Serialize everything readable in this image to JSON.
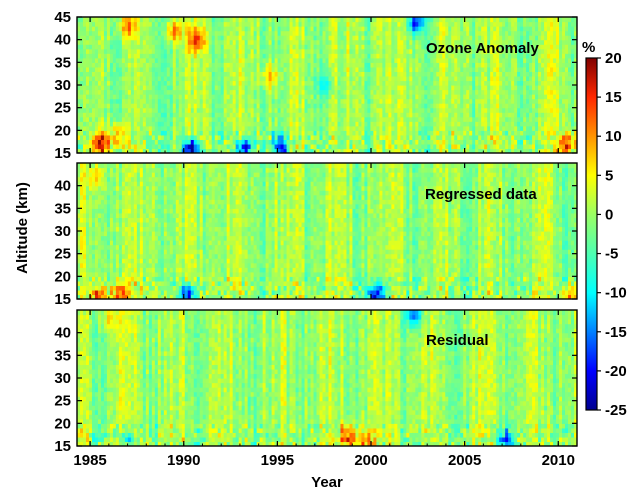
{
  "chart_data": {
    "type": "heatmap",
    "xlabel": "Year",
    "ylabel": "Altitude (km)",
    "xlim": [
      1984.3,
      2011.0
    ],
    "x_ticks": [
      "1985",
      "1990",
      "1995",
      "2000",
      "2005",
      "2010"
    ],
    "colorbar": {
      "unit": "%",
      "range": [
        -25,
        20
      ],
      "ticks": [
        "20",
        "15",
        "10",
        "5",
        "0",
        "-5",
        "-10",
        "-15",
        "-20",
        "-25"
      ],
      "colormap": "jet"
    },
    "panels": [
      {
        "title": "Ozone Anomaly",
        "ylim": [
          15,
          45
        ],
        "y_ticks": [
          "45",
          "40",
          "35",
          "30",
          "25",
          "20",
          "15"
        ],
        "features": [
          {
            "year": 1985.6,
            "altitude": 17,
            "value": 15
          },
          {
            "year": 1986.5,
            "altitude": 19,
            "value": 12
          },
          {
            "year": 1987.0,
            "altitude": 43,
            "value": 11
          },
          {
            "year": 1989.5,
            "altitude": 42,
            "value": 12
          },
          {
            "year": 1990.7,
            "altitude": 40,
            "value": 14
          },
          {
            "year": 1990.4,
            "altitude": 16,
            "value": -25
          },
          {
            "year": 1993.2,
            "altitude": 16,
            "value": -20
          },
          {
            "year": 1994.6,
            "altitude": 32,
            "value": 10
          },
          {
            "year": 1995.2,
            "altitude": 16,
            "value": -18
          },
          {
            "year": 1997.5,
            "altitude": 30,
            "value": -8
          },
          {
            "year": 2002.4,
            "altitude": 44,
            "value": -18
          },
          {
            "year": 2010.5,
            "altitude": 17,
            "value": 14
          }
        ]
      },
      {
        "title": "Regressed data",
        "ylim": [
          15,
          45
        ],
        "y_ticks": [
          "40",
          "35",
          "30",
          "25",
          "20",
          "15"
        ],
        "features": [
          {
            "year": 1985.3,
            "altitude": 42,
            "value": 7
          },
          {
            "year": 1985.5,
            "altitude": 16,
            "value": 12
          },
          {
            "year": 1986.6,
            "altitude": 16,
            "value": 14
          },
          {
            "year": 1990.2,
            "altitude": 16,
            "value": -20
          },
          {
            "year": 2000.3,
            "altitude": 16,
            "value": -22
          },
          {
            "year": 2010.6,
            "altitude": 16,
            "value": 13
          }
        ]
      },
      {
        "title": "Residual",
        "ylim": [
          15,
          45
        ],
        "y_ticks": [
          "40",
          "35",
          "30",
          "25",
          "20",
          "15"
        ],
        "features": [
          {
            "year": 1986.0,
            "altitude": 43,
            "value": 7
          },
          {
            "year": 1987.0,
            "altitude": 17,
            "value": -12
          },
          {
            "year": 1998.8,
            "altitude": 17,
            "value": 15
          },
          {
            "year": 1999.7,
            "altitude": 16,
            "value": 10
          },
          {
            "year": 2002.3,
            "altitude": 44,
            "value": -15
          },
          {
            "year": 2007.2,
            "altitude": 16,
            "value": -16
          }
        ]
      }
    ]
  }
}
